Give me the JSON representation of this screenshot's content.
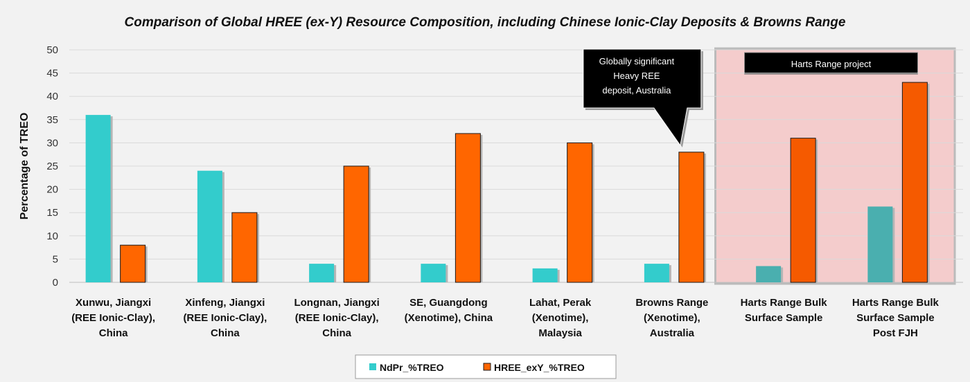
{
  "chart_data": {
    "type": "bar",
    "title": "Comparison of Global HREE (ex-Y) Resource Composition, including Chinese Ionic-Clay Deposits & Browns Range",
    "ylabel": "Percentage of TREO",
    "ylim": [
      0,
      50
    ],
    "yticks": [
      "0",
      "5",
      "10",
      "15",
      "20",
      "25",
      "30",
      "35",
      "40",
      "45",
      "50"
    ],
    "categories": [
      [
        "Xunwu, Jiangxi",
        "(REE Ionic-Clay),",
        "China"
      ],
      [
        "Xinfeng, Jiangxi",
        "(REE Ionic-Clay),",
        "China"
      ],
      [
        "Longnan, Jiangxi",
        "(REE Ionic-Clay),",
        "China"
      ],
      [
        "SE, Guangdong",
        "(Xenotime), China"
      ],
      [
        "Lahat, Perak",
        "(Xenotime),",
        "Malaysia"
      ],
      [
        "Browns Range",
        "(Xenotime),",
        "Australia"
      ],
      [
        "Harts Range Bulk",
        "Surface Sample"
      ],
      [
        "Harts Range Bulk",
        "Surface Sample",
        "Post FJH"
      ]
    ],
    "series": [
      {
        "name": "NdPr_%TREO",
        "values": [
          36,
          24,
          4,
          4,
          3,
          4,
          3.5,
          16.3
        ],
        "color": "#33cccc",
        "highlight_color": "#4aafaf"
      },
      {
        "name": "HREE_exY_%TREO",
        "values": [
          8,
          15,
          25,
          32,
          30,
          28,
          31,
          43
        ],
        "color": "#ff6600",
        "highlight_color": "#f55a00"
      }
    ],
    "highlight_region": {
      "label": "Harts Range project",
      "categories": [
        6,
        7
      ],
      "color": "#f4cccc"
    },
    "callout": {
      "lines": [
        "Globally significant",
        "Heavy REE",
        "deposit, Australia"
      ],
      "category": 5
    },
    "legend": "bottom",
    "grid": true
  }
}
